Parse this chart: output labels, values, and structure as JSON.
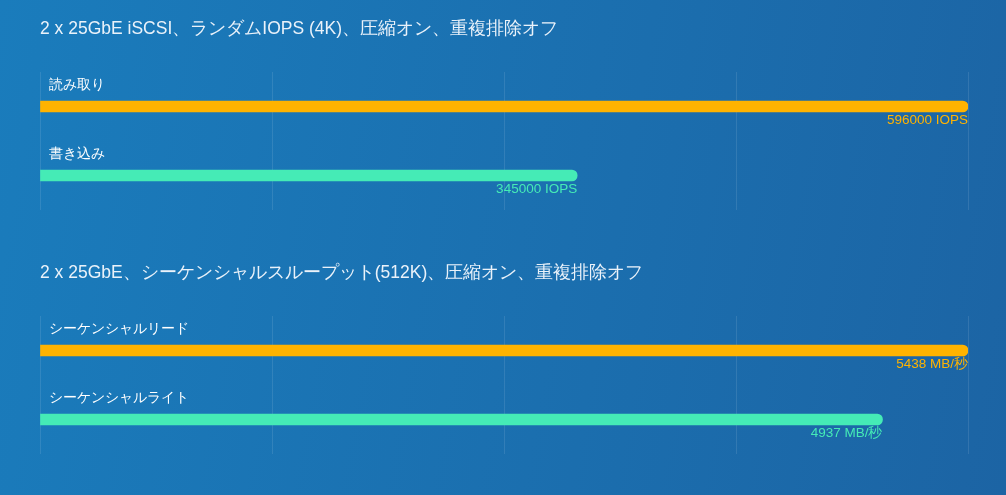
{
  "chart_data": [
    {
      "type": "bar",
      "orientation": "horizontal",
      "title": "2 x 25GbE iSCSI、ランダムIOPS (4K)、圧縮オン、重複排除オフ",
      "categories": [
        "読み取り",
        "書き込み"
      ],
      "values": [
        596000,
        345000
      ],
      "colors": [
        "#ffb300",
        "#45ebb6"
      ],
      "value_labels": [
        "596000 IOPS",
        "345000 IOPS"
      ],
      "xlim": [
        0,
        596000
      ],
      "xticks": [
        {
          "value": 0,
          "label": null
        },
        {
          "value": 149000,
          "label": null
        },
        {
          "value": 298000,
          "label": null
        },
        {
          "value": 447000,
          "label": null
        },
        {
          "value": 596000,
          "label": null
        }
      ],
      "grid": "x",
      "tick_labels": "y"
    },
    {
      "type": "bar",
      "orientation": "horizontal",
      "title": "2 x 25GbE、シーケンシャルスループット(512K)、圧縮オン、重複排除オフ",
      "categories": [
        "シーケンシャルリード",
        "シーケンシャルライト"
      ],
      "values": [
        5438,
        4937
      ],
      "colors": [
        "#ffb300",
        "#45ebb6"
      ],
      "value_labels": [
        "5438 MB/秒",
        "4937 MB/秒"
      ],
      "xlim": [
        0,
        5438
      ],
      "xticks": [
        {
          "value": 0,
          "label": null
        },
        {
          "value": 1359.5,
          "label": null
        },
        {
          "value": 2719,
          "label": null
        },
        {
          "value": 4078.5,
          "label": null
        },
        {
          "value": 5438,
          "label": null
        }
      ],
      "grid": "x",
      "tick_labels": "y"
    }
  ]
}
